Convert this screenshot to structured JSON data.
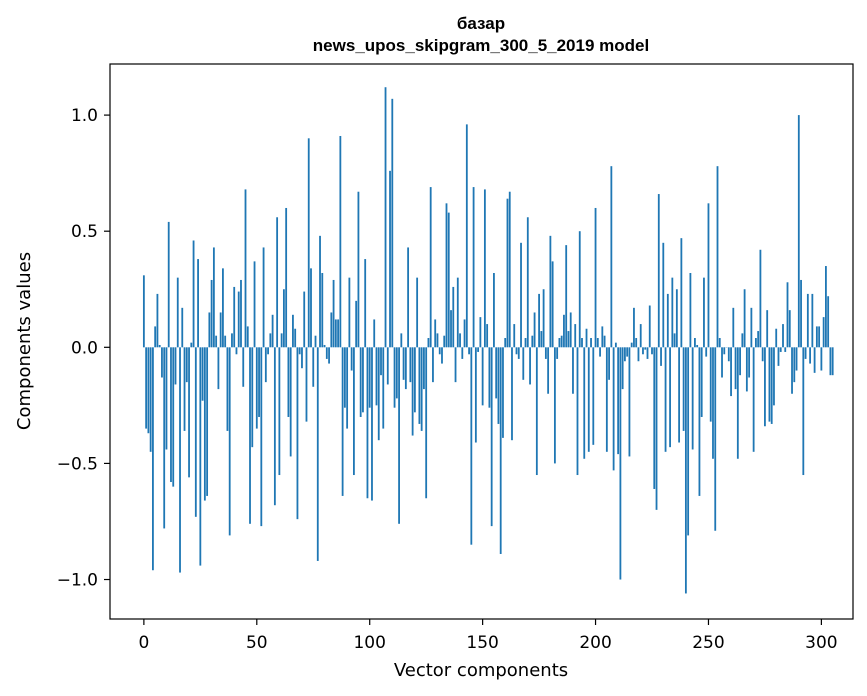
{
  "chart_data": {
    "type": "bar",
    "title": "базар",
    "subtitle": "news_upos_skipgram_300_5_2019 model",
    "xlabel": "Vector components",
    "ylabel": "Components values",
    "xlim": [
      -15,
      314
    ],
    "ylim": [
      -1.17,
      1.22
    ],
    "xticks": [
      0,
      50,
      100,
      150,
      200,
      250,
      300
    ],
    "yticks": [
      -1.0,
      -0.5,
      0.0,
      0.5,
      1.0
    ],
    "xtick_labels": [
      "0",
      "50",
      "100",
      "150",
      "200",
      "250",
      "300"
    ],
    "ytick_labels": [
      "−1.0",
      "−0.5",
      "0.0",
      "0.5",
      "1.0"
    ],
    "grid": false,
    "bar_color": "#1f77b4",
    "x_start": 0,
    "values": [
      0.31,
      -0.35,
      -0.37,
      -0.45,
      -0.96,
      0.09,
      0.23,
      0.01,
      -0.13,
      -0.78,
      -0.44,
      0.54,
      -0.58,
      -0.6,
      -0.16,
      0.3,
      -0.97,
      0.17,
      -0.36,
      -0.15,
      -0.56,
      0.02,
      0.46,
      -0.73,
      0.38,
      -0.94,
      -0.23,
      -0.66,
      -0.64,
      0.15,
      0.29,
      0.43,
      0.05,
      -0.18,
      0.15,
      0.34,
      0.05,
      -0.36,
      -0.81,
      0.06,
      0.26,
      -0.03,
      0.24,
      0.29,
      -0.17,
      0.68,
      0.09,
      -0.76,
      -0.43,
      0.37,
      -0.35,
      -0.3,
      -0.77,
      0.43,
      -0.15,
      -0.03,
      0.06,
      0.14,
      -0.68,
      0.56,
      -0.55,
      0.06,
      0.25,
      0.6,
      -0.3,
      -0.47,
      0.14,
      0.08,
      -0.74,
      -0.03,
      -0.09,
      0.24,
      -0.32,
      0.9,
      0.34,
      -0.17,
      0.05,
      -0.92,
      0.48,
      0.32,
      0.01,
      -0.05,
      -0.07,
      0.15,
      0.29,
      0.12,
      0.12,
      0.91,
      -0.64,
      -0.26,
      -0.35,
      0.3,
      -0.1,
      -0.55,
      0.2,
      0.67,
      -0.3,
      -0.28,
      0.38,
      -0.65,
      -0.26,
      -0.66,
      0.12,
      -0.25,
      -0.4,
      -0.12,
      -0.35,
      1.12,
      -0.16,
      0.76,
      1.07,
      -0.26,
      -0.22,
      -0.76,
      0.06,
      -0.14,
      -0.18,
      0.43,
      -0.15,
      -0.38,
      -0.28,
      0.3,
      -0.33,
      -0.36,
      -0.18,
      -0.65,
      0.04,
      0.69,
      -0.15,
      0.12,
      0.06,
      -0.03,
      -0.07,
      0.05,
      0.62,
      0.58,
      0.16,
      0.26,
      -0.15,
      0.3,
      0.06,
      -0.05,
      0.12,
      0.96,
      -0.03,
      -0.85,
      0.69,
      -0.41,
      -0.02,
      0.13,
      -0.25,
      0.68,
      0.1,
      -0.26,
      -0.77,
      0.32,
      -0.22,
      -0.33,
      -0.89,
      -0.39,
      0.04,
      0.64,
      0.67,
      -0.4,
      0.1,
      -0.03,
      -0.05,
      0.45,
      -0.14,
      0.04,
      0.56,
      -0.16,
      0.05,
      0.15,
      -0.55,
      0.23,
      0.07,
      0.25,
      -0.05,
      -0.2,
      0.48,
      0.37,
      -0.5,
      -0.05,
      0.04,
      0.05,
      0.14,
      0.44,
      0.07,
      0.15,
      -0.2,
      0.1,
      -0.55,
      0.5,
      0.04,
      -0.48,
      0.08,
      -0.45,
      0.04,
      -0.42,
      0.6,
      0.04,
      -0.04,
      0.09,
      0.05,
      -0.45,
      -0.14,
      0.78,
      -0.53,
      0.02,
      -0.46,
      -1.0,
      -0.18,
      -0.06,
      -0.04,
      -0.47,
      0.02,
      0.17,
      0.04,
      -0.06,
      0.1,
      -0.03,
      -0.01,
      -0.05,
      0.18,
      -0.03,
      -0.61,
      -0.7,
      0.66,
      -0.08,
      0.45,
      -0.45,
      0.23,
      -0.43,
      0.3,
      0.06,
      0.25,
      -0.41,
      0.47,
      -0.36,
      -1.06,
      -0.81,
      0.32,
      -0.44,
      0.04,
      0.01,
      -0.64,
      -0.3,
      0.3,
      -0.04,
      0.62,
      -0.32,
      -0.48,
      -0.79,
      0.78,
      0.04,
      -0.13,
      -0.03,
      0.0,
      -0.06,
      -0.21,
      0.17,
      -0.18,
      -0.48,
      -0.12,
      0.06,
      0.25,
      -0.19,
      -0.13,
      0.17,
      -0.45,
      0.04,
      0.07,
      0.42,
      -0.06,
      -0.34,
      0.16,
      -0.32,
      -0.33,
      -0.25,
      0.08,
      -0.08,
      -0.02,
      0.1,
      -0.02,
      0.28,
      0.16,
      -0.2,
      -0.15,
      -0.1,
      1.0,
      0.29,
      -0.55,
      -0.05,
      0.23,
      -0.07,
      0.23,
      -0.11,
      0.09,
      0.09,
      -0.1,
      0.13,
      0.35,
      0.22,
      -0.12,
      -0.12
    ]
  }
}
